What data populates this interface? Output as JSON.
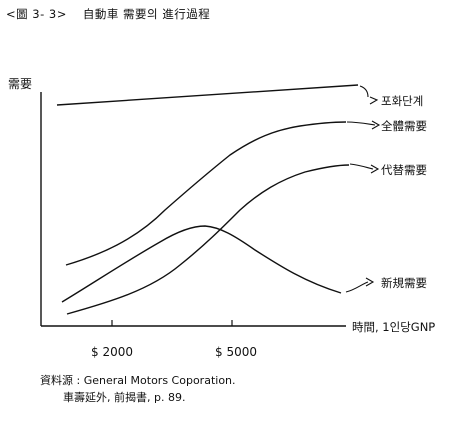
{
  "figure": {
    "title_number": "<圖 3- 3>",
    "title_main": "自動車 需要의 進行過程"
  },
  "axes": {
    "y_label": "需要",
    "x_label": "時間, 1인당GNP",
    "x_ticks": [
      "$ 2000",
      "$ 5000"
    ]
  },
  "curves": [
    {
      "label": "포화단계"
    },
    {
      "label": "全體需要"
    },
    {
      "label": "代替需要"
    },
    {
      "label": "新規需要"
    }
  ],
  "source": {
    "line1": "資料源 : General Motors Coporation.",
    "line2": "車壽延外, 前揭書, p. 89."
  }
}
